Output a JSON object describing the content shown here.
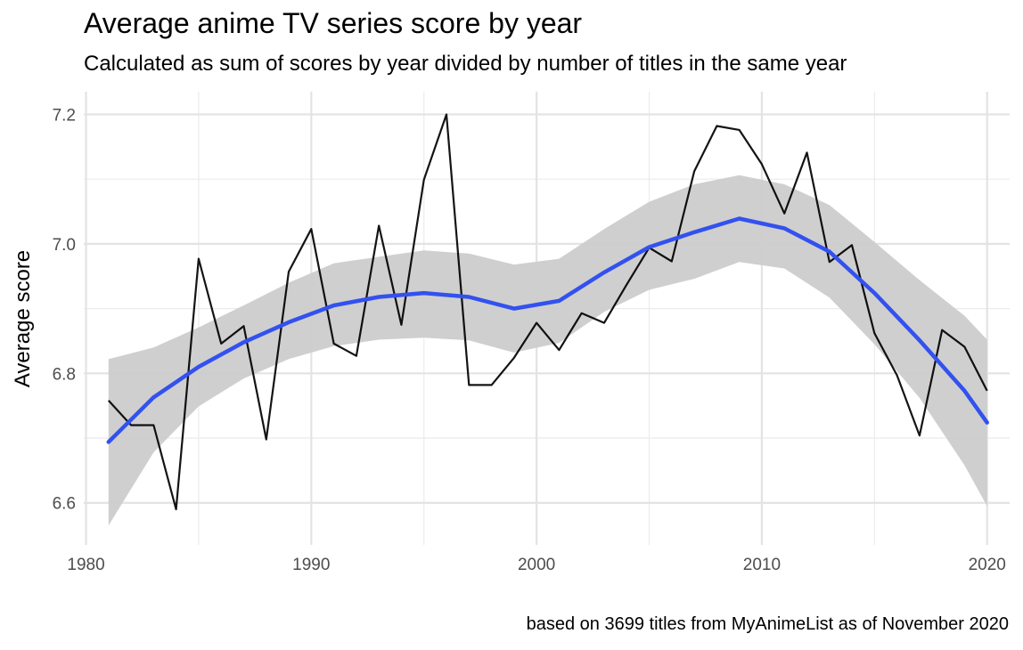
{
  "chart_data": {
    "type": "line",
    "title": "Average anime TV series score by year",
    "subtitle": "Calculated as sum of scores by year divided by number of titles in the same year",
    "caption": "based on 3699 titles from MyAnimeList as of November 2020",
    "xlabel": "",
    "ylabel": "Average score",
    "xlim": [
      1979.9,
      2021.0
    ],
    "ylim": [
      6.535,
      7.235
    ],
    "x_ticks": [
      1980,
      1990,
      2000,
      2010,
      2020
    ],
    "x_tick_labels": [
      "1980",
      "1990",
      "2000",
      "2010",
      "2020"
    ],
    "y_ticks": [
      6.6,
      6.8,
      7.0,
      7.2
    ],
    "y_tick_labels": [
      "6.6",
      "6.8",
      "7.0",
      "7.2"
    ],
    "grid": true,
    "series": [
      {
        "kind": "line",
        "color": "#000000",
        "x": [
          1981,
          1982,
          1983,
          1984,
          1985,
          1986,
          1987,
          1988,
          1989,
          1990,
          1991,
          1992,
          1993,
          1994,
          1995,
          1996,
          1997,
          1998,
          1999,
          2000,
          2001,
          2002,
          2003,
          2004,
          2005,
          2006,
          2007,
          2008,
          2009,
          2010,
          2011,
          2012,
          2013,
          2014,
          2015,
          2016,
          2017,
          2018,
          2019,
          2020
        ],
        "values": [
          6.758,
          6.72,
          6.72,
          6.59,
          6.977,
          6.846,
          6.873,
          6.698,
          6.957,
          7.023,
          6.846,
          6.827,
          7.028,
          6.875,
          7.099,
          7.2,
          6.782,
          6.782,
          6.824,
          6.878,
          6.836,
          6.893,
          6.878,
          6.937,
          6.994,
          6.973,
          7.112,
          7.182,
          7.176,
          7.123,
          7.047,
          7.141,
          6.972,
          6.998,
          6.862,
          6.797,
          6.704,
          6.867,
          6.841,
          6.773
        ]
      },
      {
        "kind": "smooth",
        "color": "#3351ef",
        "band_color": "#cccccc",
        "x": [
          1981,
          1983,
          1985,
          1987,
          1989,
          1991,
          1993,
          1995,
          1997,
          1999,
          2001,
          2003,
          2005,
          2007,
          2009,
          2011,
          2013,
          2015,
          2017,
          2019,
          2020
        ],
        "values": [
          6.694,
          6.763,
          6.81,
          6.848,
          6.879,
          6.905,
          6.918,
          6.924,
          6.918,
          6.9,
          6.912,
          6.956,
          6.995,
          7.018,
          7.039,
          7.024,
          6.988,
          6.924,
          6.851,
          6.773,
          6.724
        ],
        "upper": [
          6.822,
          6.84,
          6.871,
          6.905,
          6.94,
          6.97,
          6.98,
          6.99,
          6.985,
          6.968,
          6.977,
          7.023,
          7.065,
          7.092,
          7.106,
          7.092,
          7.06,
          7.003,
          6.944,
          6.889,
          6.852
        ],
        "lower": [
          6.565,
          6.678,
          6.749,
          6.792,
          6.822,
          6.842,
          6.852,
          6.855,
          6.851,
          6.832,
          6.847,
          6.895,
          6.929,
          6.946,
          6.972,
          6.962,
          6.917,
          6.845,
          6.762,
          6.658,
          6.595
        ]
      }
    ]
  }
}
